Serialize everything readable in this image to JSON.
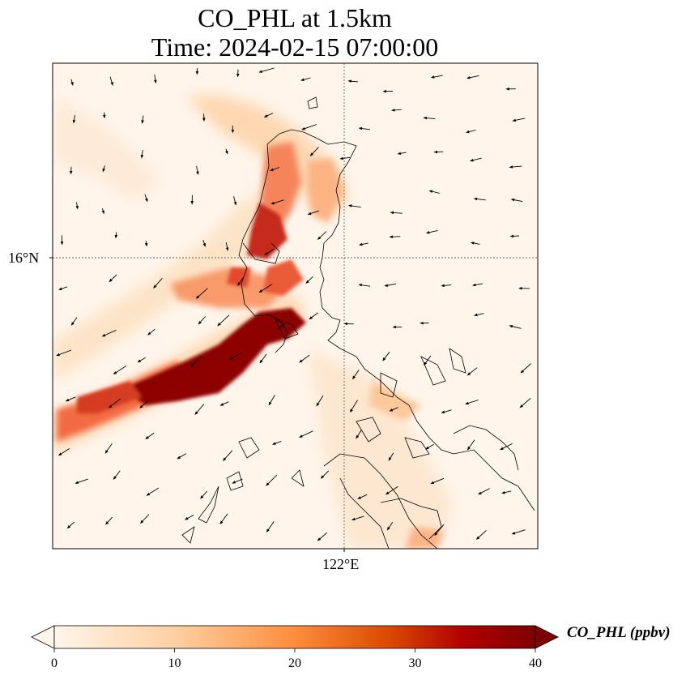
{
  "title": {
    "line1": "CO_PHL at 1.5km",
    "line2": "Time: 2024-02-15 07:00:00"
  },
  "axes": {
    "lat_tick": "16°N",
    "lon_tick": "122°E"
  },
  "colorbar": {
    "label": "CO_PHL (ppbv)",
    "ticks": [
      "0",
      "10",
      "20",
      "30",
      "40"
    ],
    "range": [
      0,
      40
    ],
    "extend": "both",
    "colors": [
      "#fff5eb",
      "#fdd0a2",
      "#fd8d3c",
      "#d94801",
      "#b10000",
      "#7f0000"
    ]
  },
  "map_layers": {
    "field": "CO_PHL",
    "gridlines": "dotted",
    "coastlines": true,
    "wind_vectors": true
  }
}
